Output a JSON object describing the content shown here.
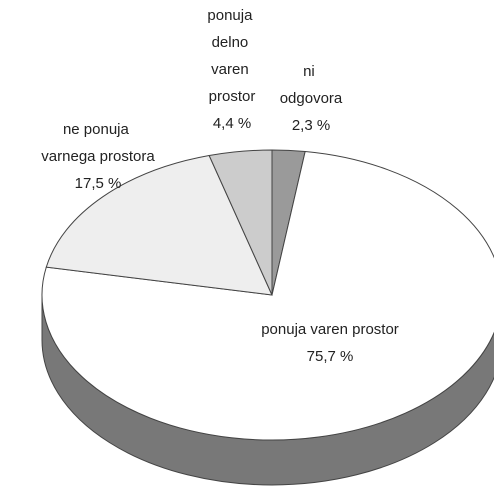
{
  "chart_data": {
    "type": "pie",
    "categories": [
      "ni odgovora",
      "ponuja varen prostor",
      "ne ponuja varnega prostora",
      "ponuja delno varen prostor"
    ],
    "values": [
      2.3,
      75.7,
      17.5,
      4.4
    ],
    "value_labels": [
      "2,3 %",
      "75,7 %",
      "17,5 %",
      "4,4 %"
    ],
    "colors": [
      "#9a9a9a",
      "#ffffff",
      "#eeeeee",
      "#cccccc"
    ]
  }
}
